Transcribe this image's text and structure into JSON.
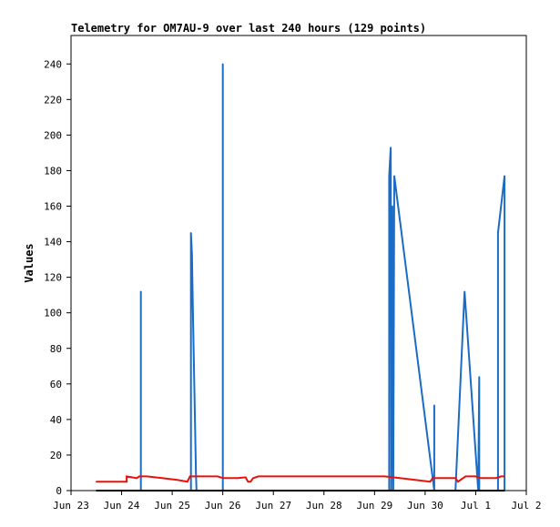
{
  "chart_data": {
    "type": "line",
    "title": "Telemetry for OM7AU-9 over last 240 hours (129 points)",
    "xlabel": "",
    "ylabel": "Values",
    "ylim": [
      0,
      256
    ],
    "xlim": [
      0,
      9
    ],
    "grid": false,
    "x_tick_labels": [
      "Jun 23",
      "Jun 24",
      "Jun 25",
      "Jun 26",
      "Jun 27",
      "Jun 28",
      "Jun 29",
      "Jun 30",
      "Jul 1",
      "Jul 2"
    ],
    "y_ticks": [
      0,
      20,
      40,
      60,
      80,
      100,
      120,
      140,
      160,
      180,
      200,
      220,
      240
    ],
    "series": [
      {
        "color": "#1a6cc6",
        "points": [
          [
            1.38,
            0
          ],
          [
            1.38,
            112
          ],
          [
            1.38,
            0
          ],
          [
            2.37,
            0
          ],
          [
            2.37,
            145
          ],
          [
            2.39,
            133
          ],
          [
            2.41,
            100
          ],
          [
            2.43,
            70
          ],
          [
            2.45,
            40
          ],
          [
            2.47,
            10
          ],
          [
            2.48,
            0
          ],
          [
            3.0,
            0
          ],
          [
            3.0,
            240
          ],
          [
            3.0,
            0
          ],
          [
            6.29,
            0
          ],
          [
            6.29,
            177
          ],
          [
            6.32,
            193
          ],
          [
            6.33,
            0
          ],
          [
            6.35,
            160
          ],
          [
            6.37,
            0
          ],
          [
            6.39,
            177
          ],
          [
            7.18,
            0
          ],
          [
            7.18,
            48
          ],
          [
            7.18,
            0
          ],
          [
            7.6,
            0
          ],
          [
            7.78,
            112
          ],
          [
            8.05,
            0
          ],
          [
            8.07,
            64
          ],
          [
            8.07,
            0
          ],
          [
            8.44,
            0
          ],
          [
            8.44,
            145
          ],
          [
            8.57,
            177
          ],
          [
            8.57,
            0
          ]
        ]
      },
      {
        "color": "#e8120c",
        "points": [
          [
            0.5,
            5
          ],
          [
            1.1,
            5
          ],
          [
            1.1,
            8
          ],
          [
            1.2,
            7.5
          ],
          [
            1.3,
            7
          ],
          [
            1.35,
            8
          ],
          [
            1.5,
            8
          ],
          [
            1.8,
            7
          ],
          [
            2.1,
            6
          ],
          [
            2.3,
            5
          ],
          [
            2.35,
            8
          ],
          [
            2.9,
            8
          ],
          [
            3.0,
            7
          ],
          [
            3.3,
            7
          ],
          [
            3.45,
            7.5
          ],
          [
            3.5,
            5
          ],
          [
            3.55,
            5
          ],
          [
            3.6,
            7
          ],
          [
            3.7,
            8
          ],
          [
            6.2,
            8
          ],
          [
            6.5,
            7
          ],
          [
            6.8,
            6
          ],
          [
            7.1,
            5
          ],
          [
            7.15,
            7
          ],
          [
            7.6,
            7
          ],
          [
            7.65,
            5
          ],
          [
            7.8,
            8
          ],
          [
            8.0,
            8
          ],
          [
            8.1,
            7
          ],
          [
            8.4,
            7
          ],
          [
            8.5,
            8
          ],
          [
            8.57,
            8
          ]
        ]
      },
      {
        "color": "#000000",
        "points": [
          [
            0.5,
            0
          ],
          [
            8.57,
            0
          ]
        ]
      }
    ]
  }
}
